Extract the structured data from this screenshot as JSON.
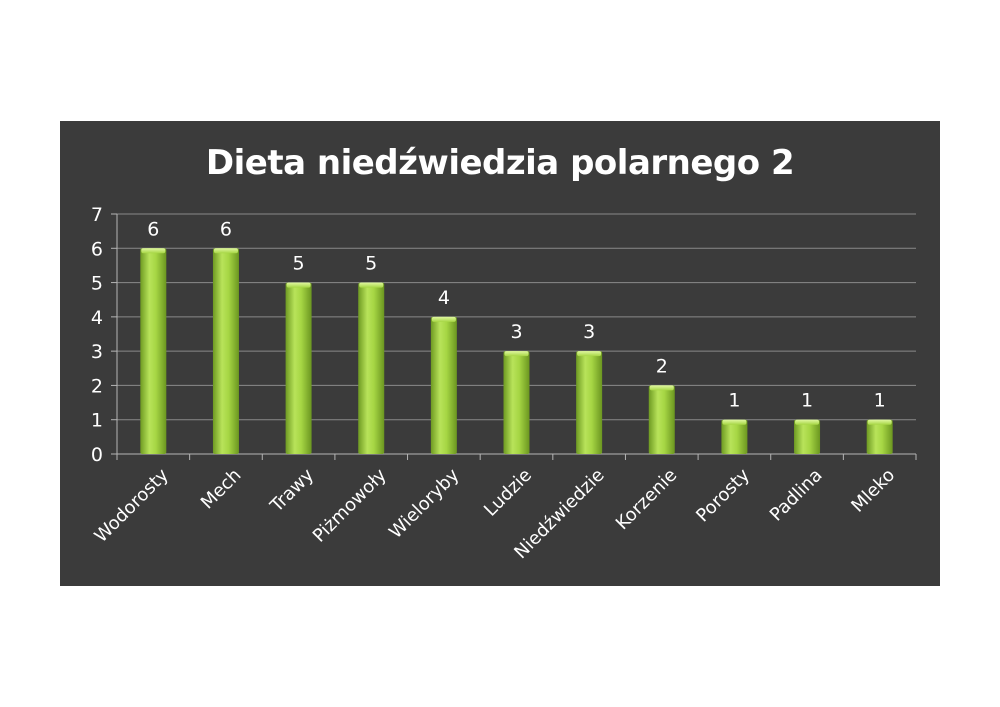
{
  "chart_data": {
    "type": "bar",
    "title": "Dieta niedźwiedzia polarnego 2",
    "xlabel": "",
    "ylabel": "",
    "categories": [
      "Wodorosty",
      "Mech",
      "Trawy",
      "Piżmowoły",
      "Wieloryby",
      "Ludzie",
      "Niedźwiedzie",
      "Korzenie",
      "Porosty",
      "Padlina",
      "Mleko"
    ],
    "values": [
      6,
      6,
      5,
      5,
      4,
      3,
      3,
      2,
      1,
      1,
      1
    ],
    "ylim": [
      0,
      7
    ],
    "yticks": [
      0,
      1,
      2,
      3,
      4,
      5,
      6,
      7
    ],
    "grid": true,
    "data_labels": true,
    "legend": "none",
    "colors": {
      "background": "#3b3b3b",
      "bar": "#9acd32",
      "gridline": "#8a8a8a",
      "text": "#ffffff"
    }
  }
}
